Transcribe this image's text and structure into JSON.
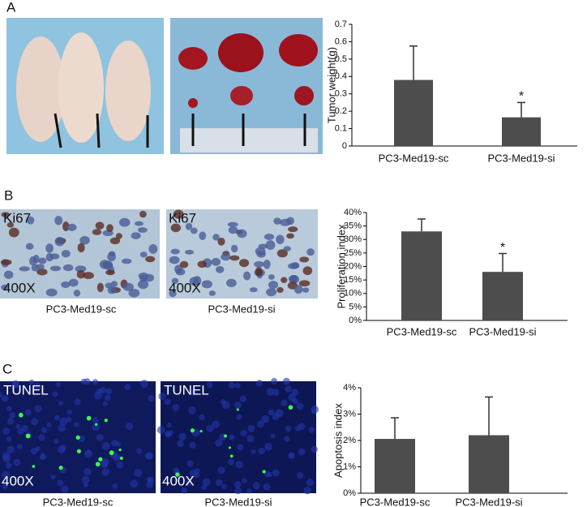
{
  "panels": [
    {
      "letter": "A"
    },
    {
      "letter": "B",
      "images": [
        {
          "stain": "Ki67",
          "magnification": "400X",
          "caption": "PC3-Med19-sc"
        },
        {
          "stain": "Ki67",
          "magnification": "400X",
          "caption": "PC3-Med19-si"
        }
      ]
    },
    {
      "letter": "C",
      "images": [
        {
          "stain": "TUNEL",
          "magnification": "400X",
          "caption": "PC3-Med19-sc"
        },
        {
          "stain": "TUNEL",
          "magnification": "400X",
          "caption": "PC3-Med19-si"
        }
      ]
    }
  ],
  "chart_data": [
    {
      "type": "bar",
      "y_label": "Tumor weight(g)",
      "categories": [
        "PC3-Med19-sc",
        "PC3-Med19-si"
      ],
      "values": [
        0.38,
        0.165
      ],
      "errors": [
        0.195,
        0.085
      ],
      "significance": [
        null,
        "*"
      ],
      "color": "#4d4d4d",
      "ylim": [
        0,
        0.7
      ],
      "yticks": [
        0,
        0.1,
        0.2,
        0.3,
        0.4,
        0.5,
        0.6,
        0.7
      ]
    },
    {
      "type": "bar",
      "y_label": "Proliferation index",
      "categories": [
        "PC3-Med19-sc",
        "PC3-Med19-si"
      ],
      "values": [
        33,
        18
      ],
      "errors": [
        4.6,
        6.8
      ],
      "significance": [
        null,
        "*"
      ],
      "color": "#4d4d4d",
      "ylim": [
        0,
        40
      ],
      "yticks": [
        {
          "value": 0,
          "label": "0%"
        },
        {
          "value": 5,
          "label": "5%"
        },
        {
          "value": 10,
          "label": "10%"
        },
        {
          "value": 15,
          "label": "15%"
        },
        {
          "value": 20,
          "label": "20%"
        },
        {
          "value": 25,
          "label": "25%"
        },
        {
          "value": 30,
          "label": "30%"
        },
        {
          "value": 35,
          "label": "35%"
        },
        {
          "value": 40,
          "label": "40%"
        }
      ]
    },
    {
      "type": "bar",
      "y_label": "Apoptosis index",
      "categories": [
        "PC3-Med19-sc",
        "PC3-Med19-si"
      ],
      "values": [
        2.06,
        2.2
      ],
      "errors": [
        0.8,
        1.45
      ],
      "color": "#4d4d4d",
      "ylim": [
        0,
        4
      ],
      "yticks": [
        {
          "value": 0,
          "label": "0%"
        },
        {
          "value": 1,
          "label": "1%"
        },
        {
          "value": 2,
          "label": "2%"
        },
        {
          "value": 3,
          "label": "3%"
        },
        {
          "value": 4,
          "label": "4%"
        }
      ]
    }
  ]
}
